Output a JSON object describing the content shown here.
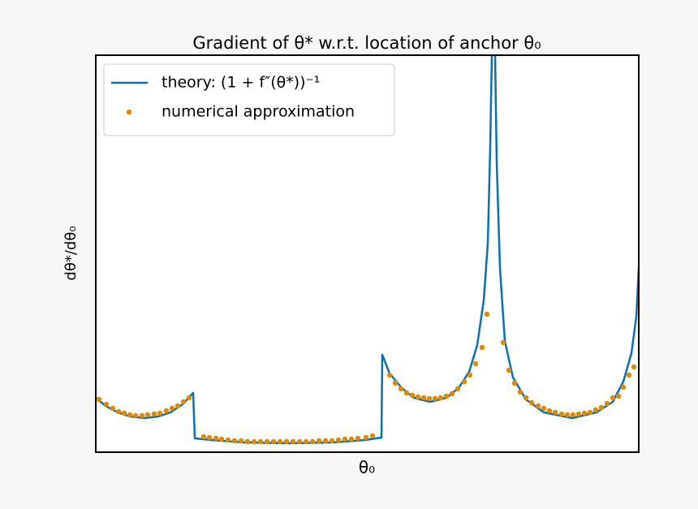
{
  "chart_data": {
    "type": "line",
    "title": "Gradient of θ* w.r.t. location of anchor θ₀",
    "x_label": "θ₀",
    "y_label": "dθ*/dθ₀",
    "xlim": [
      0,
      669
    ],
    "ylim": [
      0,
      489
    ],
    "legend": "upper left",
    "series": [
      {
        "name": "theory: (1 + f″(θ*))⁻¹",
        "type": "line",
        "color": "#0a70b2",
        "x": [
          0,
          12,
          27,
          42,
          60,
          77,
          92,
          107,
          120,
          122,
          142,
          182,
          238,
          292,
          332,
          352,
          353,
          362,
          377,
          392,
          412,
          432,
          447,
          460,
          470,
          478,
          483,
          486,
          488,
          490,
          492,
          494,
          498,
          504,
          514,
          530,
          552,
          587,
          617,
          637,
          650,
          660,
          666,
          669
        ],
        "values": [
          67,
          57,
          49,
          44,
          42,
          44,
          49,
          59,
          73,
          17,
          15,
          12,
          11,
          12,
          15,
          18,
          120,
          97,
          79,
          67,
          62,
          67,
          79,
          99,
          132,
          187,
          257,
          377,
          489,
          657,
          489,
          357,
          227,
          137,
          92,
          65,
          49,
          42,
          49,
          62,
          87,
          122,
          167,
          227
        ]
      },
      {
        "name": "numerical approximation",
        "type": "scatter",
        "color": "#de8a05",
        "x": [
          4,
          13,
          21,
          28,
          35,
          42,
          49,
          57,
          64,
          72,
          79,
          87,
          94,
          101,
          108,
          115,
          133,
          140,
          148,
          155,
          163,
          171,
          179,
          187,
          195,
          203,
          211,
          219,
          227,
          235,
          243,
          251,
          259,
          267,
          275,
          283,
          291,
          299,
          307,
          315,
          323,
          333,
          341,
          362,
          369,
          376,
          383,
          390,
          397,
          404,
          411,
          418,
          425,
          432,
          439,
          446,
          454,
          461,
          468,
          476,
          482,
          502,
          509,
          516,
          523,
          530,
          537,
          545,
          552,
          559,
          566,
          574,
          581,
          588,
          595,
          602,
          609,
          616,
          623,
          630,
          637,
          644,
          650,
          657,
          663
        ],
        "values": [
          65,
          59,
          54,
          50,
          48,
          46,
          45,
          45,
          46,
          47,
          48,
          51,
          54,
          57,
          62,
          67,
          19,
          18,
          17,
          16,
          15,
          14,
          14,
          13,
          13,
          13,
          13,
          13,
          13,
          13,
          13,
          13,
          13,
          13,
          14,
          14,
          14,
          15,
          16,
          16,
          17,
          18,
          20,
          95,
          85,
          78,
          73,
          70,
          68,
          67,
          66,
          66,
          67,
          69,
          72,
          78,
          87,
          95,
          109,
          129,
          170,
          135,
          101,
          85,
          74,
          67,
          61,
          57,
          54,
          51,
          49,
          47,
          46,
          46,
          47,
          48,
          49,
          52,
          55,
          60,
          67,
          69,
          80,
          95,
          105
        ]
      }
    ]
  }
}
